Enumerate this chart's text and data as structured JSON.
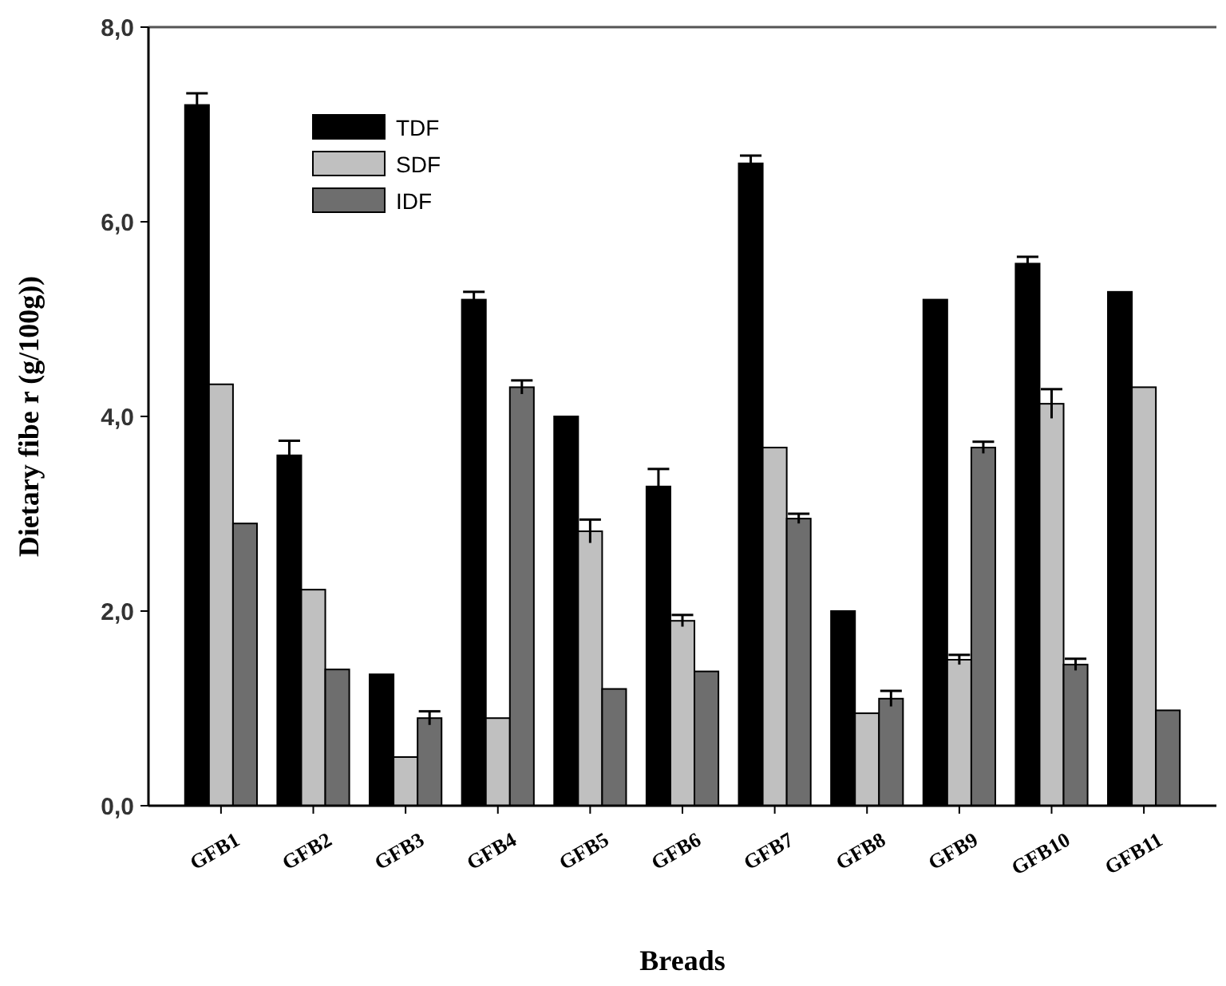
{
  "chart_data": {
    "type": "bar",
    "xlabel": "Breads",
    "ylabel": "Dietary fibe r (g/100g))",
    "categories": [
      "GFB1",
      "GFB2",
      "GFB3",
      "GFB4",
      "GFB5",
      "GFB6",
      "GFB7",
      "GFB8",
      "GFB9",
      "GFB10",
      "GFB11"
    ],
    "series": [
      {
        "name": "TDF",
        "color": "#000000",
        "values": [
          7.2,
          3.6,
          1.35,
          5.2,
          4.0,
          3.28,
          6.6,
          2.0,
          5.2,
          5.57,
          5.28
        ],
        "errors": [
          0.12,
          0.15,
          null,
          0.08,
          null,
          0.18,
          0.08,
          null,
          null,
          0.07,
          null
        ]
      },
      {
        "name": "SDF",
        "color": "#c0c0c0",
        "values": [
          4.33,
          2.22,
          0.5,
          0.9,
          2.82,
          1.9,
          3.68,
          0.95,
          1.5,
          4.13,
          4.3
        ],
        "errors": [
          null,
          null,
          null,
          null,
          0.12,
          0.06,
          null,
          null,
          0.05,
          0.15,
          null
        ]
      },
      {
        "name": "IDF",
        "color": "#6e6e6e",
        "values": [
          2.9,
          1.4,
          0.9,
          4.3,
          1.2,
          1.38,
          2.95,
          1.1,
          3.68,
          1.45,
          0.98
        ],
        "errors": [
          null,
          null,
          0.07,
          0.07,
          null,
          null,
          0.05,
          0.08,
          0.06,
          0.06,
          null
        ]
      }
    ],
    "ylim": [
      0,
      8
    ],
    "yticks": [
      {
        "value": 0,
        "label": "0,0"
      },
      {
        "value": 2,
        "label": "2,0"
      },
      {
        "value": 4,
        "label": "4,0"
      },
      {
        "value": 6,
        "label": "6,0"
      },
      {
        "value": 8,
        "label": "8,0"
      }
    ],
    "legend": "top left",
    "grid": false
  }
}
